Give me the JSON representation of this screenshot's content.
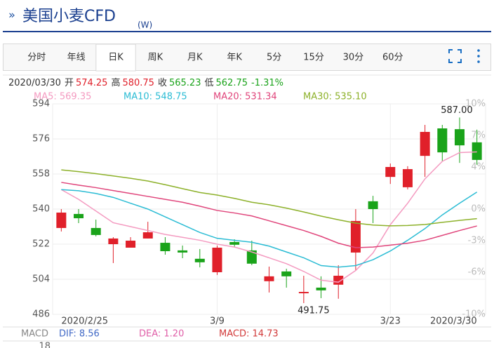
{
  "header": {
    "title": "美国小麦CFD",
    "code": "(W)"
  },
  "tabs": {
    "items": [
      "分时",
      "年线",
      "日K",
      "周K",
      "月K",
      "年K",
      "5分",
      "15分",
      "30分",
      "60分"
    ],
    "selected": 2
  },
  "quote": {
    "date": "2020/03/30",
    "items": [
      {
        "label": "开",
        "value": "574.25",
        "color": "#e0202a"
      },
      {
        "label": "高",
        "value": "580.75",
        "color": "#e0202a"
      },
      {
        "label": "收",
        "value": "565.23",
        "color": "#1aa31a"
      },
      {
        "label": "低",
        "value": "562.75",
        "color": "#1aa31a"
      }
    ],
    "change": "-1.31%",
    "change_color": "#1aa31a"
  },
  "chart_data": {
    "type": "candlestick",
    "categories": [
      "2020/2/25",
      null,
      null,
      null,
      null,
      null,
      null,
      null,
      null,
      "3/9",
      null,
      null,
      null,
      null,
      null,
      null,
      null,
      null,
      null,
      "3/23",
      null,
      null,
      null,
      null,
      "2020/3/30"
    ],
    "open": [
      530.3,
      537.5,
      530.3,
      522,
      520.2,
      524.9,
      522.7,
      518.8,
      514.5,
      507.6,
      523.1,
      518.8,
      503,
      508,
      496.8,
      499.7,
      501.2,
      517.7,
      544,
      556.5,
      551.2,
      567.3,
      581.4,
      581,
      574.25
    ],
    "high": [
      540,
      540,
      534.6,
      525.6,
      525.6,
      533.5,
      525.6,
      521.3,
      519.5,
      521.3,
      524.5,
      523.8,
      510.5,
      509.4,
      505.8,
      505.5,
      511.2,
      540,
      546.8,
      563.4,
      562,
      583.2,
      583.2,
      587,
      580.75
    ],
    "low": [
      528.5,
      532.8,
      526,
      512.3,
      520.2,
      524.9,
      516.6,
      514.8,
      510.1,
      506.2,
      520.6,
      511.2,
      497.2,
      499.7,
      491.75,
      494.3,
      494,
      508.4,
      532.8,
      552.9,
      550.1,
      556.5,
      564.5,
      563.7,
      562.75
    ],
    "close": [
      538.2,
      535.3,
      526.7,
      524.9,
      523.8,
      528.1,
      518.4,
      517.7,
      512.7,
      520.2,
      521.7,
      512,
      505.5,
      505.5,
      497.5,
      498.3,
      505.8,
      533.9,
      540,
      561.6,
      560.5,
      579.6,
      569.1,
      572.7,
      565.23
    ],
    "up_color": "#e0202a",
    "down_color": "#1aa31a",
    "series": [
      {
        "label": "MA5: 569.35",
        "color": "#f49ac0",
        "values": [
          550,
          545,
          539,
          533,
          531,
          529,
          527,
          525.5,
          524,
          522,
          520.5,
          518,
          515,
          512,
          508,
          503.5,
          502.5,
          508.5,
          517.5,
          532,
          543,
          555.5,
          564.5,
          569,
          569.35
        ]
      },
      {
        "label": "MA10: 548.75",
        "color": "#2bbcd4",
        "values": [
          550,
          549.4,
          548,
          546,
          543,
          540,
          536,
          532,
          528,
          525,
          524,
          523,
          521,
          518,
          515,
          511,
          510.2,
          511,
          514,
          518.5,
          524,
          530,
          537,
          543,
          548.75
        ]
      },
      {
        "label": "MA20: 531.34",
        "color": "#e0457b",
        "values": [
          553.7,
          552.3,
          551,
          549.5,
          548,
          546.5,
          545,
          543.5,
          541.5,
          539.3,
          538,
          536.5,
          534,
          531.5,
          529,
          526,
          522.5,
          520.2,
          520.5,
          521.5,
          522.5,
          524,
          526.5,
          529,
          531.34
        ]
      },
      {
        "label": "MA30: 535.10",
        "color": "#8db12a",
        "values": [
          560.1,
          559.2,
          558.2,
          557,
          555.8,
          554.4,
          552.5,
          550.5,
          548.5,
          547.2,
          545.5,
          543.5,
          542.2,
          540.5,
          538.5,
          536.4,
          534.5,
          532.8,
          531.8,
          531.4,
          531.6,
          532.1,
          533.2,
          534.2,
          535.1
        ]
      }
    ],
    "ylim": [
      486,
      594
    ],
    "yticks": [
      486,
      504,
      522,
      540,
      558,
      576,
      594
    ],
    "y2lim": [
      -10,
      10
    ],
    "y2ticks": [
      {
        "value": -10,
        "label": "-10%"
      },
      {
        "value": -6,
        "label": "-6%"
      },
      {
        "value": -3,
        "label": "-3%"
      },
      {
        "value": 0,
        "label": "0%"
      },
      {
        "value": 4,
        "label": "4%"
      },
      {
        "value": 7,
        "label": "7%"
      },
      {
        "value": 10,
        "label": "10%"
      }
    ],
    "max_label": "587.00",
    "min_label": "491.75",
    "grid": true
  },
  "macd": {
    "title": "MACD",
    "dif": "DIF: 8.56",
    "dea": "DEA: 1.20",
    "macd": "MACD: 14.73",
    "tick": "18"
  }
}
